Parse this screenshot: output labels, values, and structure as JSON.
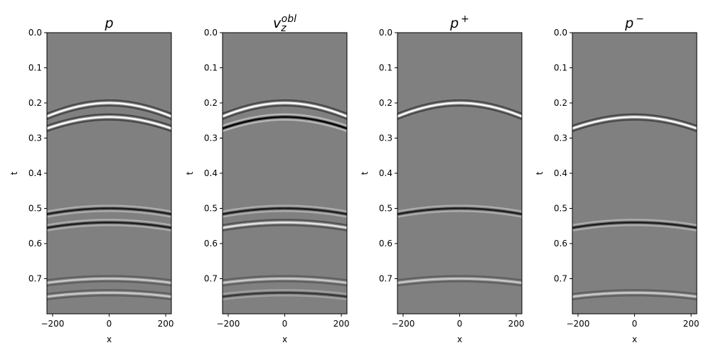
{
  "chart_data": [
    {
      "type": "heatmap",
      "title": {
        "base": "p",
        "sup": "",
        "sub": ""
      },
      "xlabel": "x",
      "ylabel": "t",
      "xlim": [
        -220,
        220
      ],
      "ylim": [
        0.8,
        0.0
      ],
      "xticks": [
        "-200",
        "0",
        "200"
      ],
      "yticks": [
        "0.0",
        "0.1",
        "0.2",
        "0.3",
        "0.4",
        "0.5",
        "0.6",
        "0.7"
      ],
      "colormap": "gray",
      "background": "#808080",
      "events": [
        {
          "t0": 0.2,
          "polarity": 1,
          "amp": 1.0
        },
        {
          "t0": 0.24,
          "polarity": 1,
          "amp": 1.0
        },
        {
          "t0": 0.5,
          "polarity": -1,
          "amp": 0.8
        },
        {
          "t0": 0.54,
          "polarity": -1,
          "amp": 0.8
        },
        {
          "t0": 0.7,
          "polarity": 1,
          "amp": 0.6
        },
        {
          "t0": 0.74,
          "polarity": 1,
          "amp": 0.6
        }
      ]
    },
    {
      "type": "heatmap",
      "title": {
        "base": "v",
        "sup": "obl",
        "sub": "z"
      },
      "xlabel": "x",
      "ylabel": "t",
      "xlim": [
        -220,
        220
      ],
      "ylim": [
        0.8,
        0.0
      ],
      "xticks": [
        "-200",
        "0",
        "200"
      ],
      "yticks": [
        "0.0",
        "0.1",
        "0.2",
        "0.3",
        "0.4",
        "0.5",
        "0.6",
        "0.7"
      ],
      "colormap": "gray",
      "background": "#808080",
      "events": [
        {
          "t0": 0.2,
          "polarity": 1,
          "amp": 1.0
        },
        {
          "t0": 0.24,
          "polarity": -1,
          "amp": 1.0
        },
        {
          "t0": 0.5,
          "polarity": -1,
          "amp": 0.8
        },
        {
          "t0": 0.54,
          "polarity": 1,
          "amp": 0.8
        },
        {
          "t0": 0.7,
          "polarity": 1,
          "amp": 0.6
        },
        {
          "t0": 0.74,
          "polarity": -1,
          "amp": 0.6
        }
      ]
    },
    {
      "type": "heatmap",
      "title": {
        "base": "p",
        "sup": "+",
        "sub": ""
      },
      "xlabel": "x",
      "ylabel": "t",
      "xlim": [
        -220,
        220
      ],
      "ylim": [
        0.8,
        0.0
      ],
      "xticks": [
        "-200",
        "0",
        "200"
      ],
      "yticks": [
        "0.0",
        "0.1",
        "0.2",
        "0.3",
        "0.4",
        "0.5",
        "0.6",
        "0.7"
      ],
      "colormap": "gray",
      "background": "#808080",
      "events": [
        {
          "t0": 0.2,
          "polarity": 1,
          "amp": 1.0
        },
        {
          "t0": 0.5,
          "polarity": -1,
          "amp": 0.8
        },
        {
          "t0": 0.7,
          "polarity": 1,
          "amp": 0.6
        }
      ]
    },
    {
      "type": "heatmap",
      "title": {
        "base": "p",
        "sup": "−",
        "sub": ""
      },
      "xlabel": "x",
      "ylabel": "t",
      "xlim": [
        -220,
        220
      ],
      "ylim": [
        0.8,
        0.0
      ],
      "xticks": [
        "-200",
        "0",
        "200"
      ],
      "yticks": [
        "0.0",
        "0.1",
        "0.2",
        "0.3",
        "0.4",
        "0.5",
        "0.6",
        "0.7"
      ],
      "colormap": "gray",
      "background": "#808080",
      "events": [
        {
          "t0": 0.24,
          "polarity": 1,
          "amp": 1.0
        },
        {
          "t0": 0.54,
          "polarity": -1,
          "amp": 0.8
        },
        {
          "t0": 0.74,
          "polarity": 1,
          "amp": 0.6
        }
      ]
    }
  ]
}
